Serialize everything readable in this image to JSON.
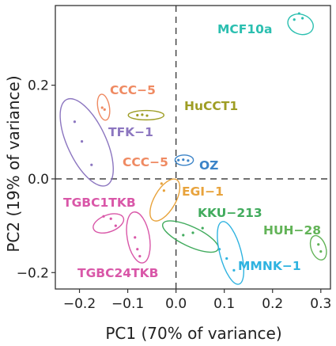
{
  "chart_data": {
    "type": "scatter",
    "xlabel": "PC1 (70% of variance)",
    "ylabel": "PC2 (19% of variance)",
    "xlim": [
      -0.25,
      0.32
    ],
    "ylim": [
      -0.235,
      0.37
    ],
    "xticks": [
      -0.2,
      -0.1,
      0.0,
      0.1,
      0.2,
      0.3
    ],
    "xtick_labels": [
      "−0.2",
      "−0.1",
      "0.0",
      "0.1",
      "0.2",
      "0.3"
    ],
    "yticks": [
      -0.2,
      0.0,
      0.2
    ],
    "ytick_labels": [
      "−0.2",
      "0.0",
      "0.2"
    ],
    "grid": false,
    "reference_lines": {
      "x": 0,
      "y": 0,
      "style": "dashed"
    },
    "groups": [
      {
        "label": "MCF10a",
        "color": "#2bbfb0",
        "points": [
          [
            0.245,
            0.34
          ],
          [
            0.255,
            0.353
          ],
          [
            0.262,
            0.343
          ]
        ],
        "ellipse": {
          "center": [
            0.258,
            0.33
          ],
          "rx": 0.027,
          "ry": 0.021,
          "angle_deg": 20
        }
      },
      {
        "label": "CCC−5",
        "color": "#ef8a62",
        "points": [
          [
            -0.153,
            0.152
          ],
          [
            -0.148,
            0.148
          ]
        ],
        "ellipse": {
          "center": [
            -0.15,
            0.153
          ],
          "rx": 0.012,
          "ry": 0.028,
          "angle_deg": -10
        }
      },
      {
        "label": "HuCCT1",
        "color": "#9e9d24",
        "points": [
          [
            -0.08,
            0.136
          ],
          [
            -0.07,
            0.137
          ],
          [
            -0.06,
            0.135
          ]
        ],
        "ellipse": {
          "center": [
            -0.062,
            0.136
          ],
          "rx": 0.037,
          "ry": 0.01,
          "angle_deg": 0
        }
      },
      {
        "label": "TFK−1",
        "color": "#8c76c0",
        "points": [
          [
            -0.21,
            0.122
          ],
          [
            -0.195,
            0.08
          ],
          [
            -0.175,
            0.03
          ]
        ],
        "ellipse": {
          "center": [
            -0.185,
            0.078
          ],
          "rx": 0.04,
          "ry": 0.101,
          "angle_deg": -25
        }
      },
      {
        "label": "CCC−5",
        "color": "#ef8a62",
        "points": [],
        "ellipse": null
      },
      {
        "label": "OZ",
        "color": "#3c84c8",
        "points": [
          [
            0.005,
            0.04
          ],
          [
            0.015,
            0.041
          ],
          [
            0.025,
            0.039
          ]
        ],
        "ellipse": {
          "center": [
            0.017,
            0.04
          ],
          "rx": 0.019,
          "ry": 0.011,
          "angle_deg": 0
        }
      },
      {
        "label": "EGI−1",
        "color": "#e8a33c",
        "points": [
          [
            -0.03,
            -0.01
          ],
          [
            -0.025,
            -0.025
          ]
        ],
        "ellipse": {
          "center": [
            -0.023,
            -0.045
          ],
          "rx": 0.022,
          "ry": 0.05,
          "angle_deg": 30
        }
      },
      {
        "label": "TGBC1TKB",
        "color": "#d957a8",
        "points": [
          [
            -0.15,
            -0.08
          ],
          [
            -0.135,
            -0.085
          ],
          [
            -0.125,
            -0.1
          ]
        ],
        "ellipse": {
          "center": [
            -0.14,
            -0.095
          ],
          "rx": 0.033,
          "ry": 0.018,
          "angle_deg": -20
        }
      },
      {
        "label": "KKU−213",
        "color": "#41ab5d",
        "points": [
          [
            0.015,
            -0.12
          ],
          [
            0.035,
            -0.115
          ],
          [
            0.055,
            -0.105
          ]
        ],
        "ellipse": {
          "center": [
            0.03,
            -0.123
          ],
          "rx": 0.063,
          "ry": 0.021,
          "angle_deg": 25
        }
      },
      {
        "label": "HUH−28",
        "color": "#62b357",
        "points": [
          [
            0.295,
            -0.14
          ],
          [
            0.3,
            -0.155
          ]
        ],
        "ellipse": {
          "center": [
            0.295,
            -0.147
          ],
          "rx": 0.015,
          "ry": 0.027,
          "angle_deg": -20
        }
      },
      {
        "label": "TGBC24TKB",
        "color": "#d957a8",
        "points": [
          [
            -0.085,
            -0.125
          ],
          [
            -0.08,
            -0.15
          ],
          [
            -0.075,
            -0.165
          ]
        ],
        "ellipse": {
          "center": [
            -0.078,
            -0.125
          ],
          "rx": 0.023,
          "ry": 0.055,
          "angle_deg": -10
        }
      },
      {
        "label": "MMNK−1",
        "color": "#2fb3e0",
        "points": [
          [
            0.09,
            -0.15
          ],
          [
            0.105,
            -0.17
          ],
          [
            0.12,
            -0.195
          ]
        ],
        "ellipse": {
          "center": [
            0.113,
            -0.158
          ],
          "rx": 0.022,
          "ry": 0.069,
          "angle_deg": -15
        }
      }
    ]
  }
}
